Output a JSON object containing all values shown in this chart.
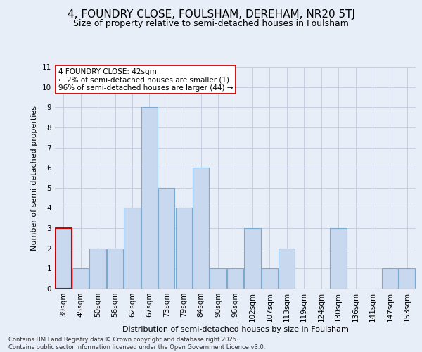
{
  "title_line1": "4, FOUNDRY CLOSE, FOULSHAM, DEREHAM, NR20 5TJ",
  "title_line2": "Size of property relative to semi-detached houses in Foulsham",
  "categories": [
    "39sqm",
    "45sqm",
    "50sqm",
    "56sqm",
    "62sqm",
    "67sqm",
    "73sqm",
    "79sqm",
    "84sqm",
    "90sqm",
    "96sqm",
    "102sqm",
    "107sqm",
    "113sqm",
    "119sqm",
    "124sqm",
    "130sqm",
    "136sqm",
    "141sqm",
    "147sqm",
    "153sqm"
  ],
  "values": [
    3,
    1,
    2,
    2,
    4,
    9,
    5,
    4,
    6,
    1,
    1,
    3,
    1,
    2,
    0,
    0,
    3,
    0,
    0,
    1,
    1
  ],
  "bar_color": "#c8d8ee",
  "bar_edge_color": "#7aaad0",
  "highlight_bar_index": 0,
  "highlight_bar_edge_color": "#cc0000",
  "xlabel": "Distribution of semi-detached houses by size in Foulsham",
  "ylabel": "Number of semi-detached properties",
  "ylim": [
    0,
    11
  ],
  "yticks": [
    0,
    1,
    2,
    3,
    4,
    5,
    6,
    7,
    8,
    9,
    10,
    11
  ],
  "annotation_text": "4 FOUNDRY CLOSE: 42sqm\n← 2% of semi-detached houses are smaller (1)\n96% of semi-detached houses are larger (44) →",
  "annotation_box_facecolor": "#ffffff",
  "annotation_box_edgecolor": "#cc0000",
  "footnote": "Contains HM Land Registry data © Crown copyright and database right 2025.\nContains public sector information licensed under the Open Government Licence v3.0.",
  "background_color": "#e8eef8",
  "grid_color": "#c5cfe0",
  "title_fontsize": 11,
  "subtitle_fontsize": 9,
  "axis_label_fontsize": 8,
  "tick_fontsize": 7.5,
  "annotation_fontsize": 7.5,
  "footnote_fontsize": 6
}
